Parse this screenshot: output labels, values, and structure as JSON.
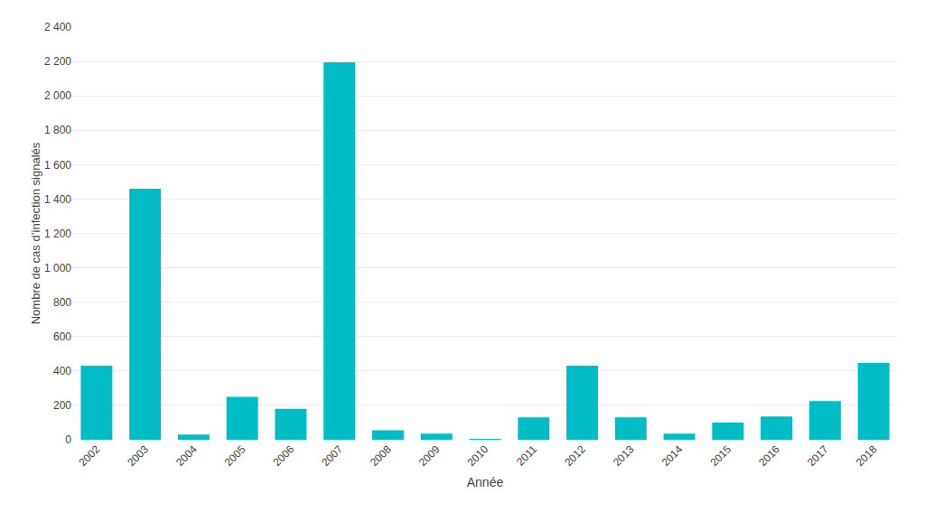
{
  "chart_data": {
    "type": "bar",
    "categories": [
      "2002",
      "2003",
      "2004",
      "2005",
      "2006",
      "2007",
      "2008",
      "2009",
      "2010",
      "2011",
      "2012",
      "2013",
      "2014",
      "2015",
      "2016",
      "2017",
      "2018"
    ],
    "values": [
      430,
      1460,
      30,
      250,
      180,
      2195,
      55,
      35,
      5,
      130,
      430,
      130,
      35,
      100,
      135,
      225,
      447
    ],
    "color": "#00BCC4",
    "xlabel": "Année",
    "ylabel": "Nombre de cas d’infection signalés",
    "ylim": [
      0,
      2400
    ],
    "yticks": [
      0,
      200,
      400,
      600,
      800,
      {
        "value": 1000,
        "label": "1 000"
      },
      {
        "value": 1200,
        "label": "1 200"
      },
      {
        "value": 1400,
        "label": "1 400"
      },
      {
        "value": 1600,
        "label": "1 600"
      },
      {
        "value": 1800,
        "label": "1 800"
      },
      {
        "value": 2000,
        "label": "2 000"
      },
      {
        "value": 2200,
        "label": "2 200"
      },
      {
        "value": 2400,
        "label": "2 400"
      }
    ],
    "grid": true
  }
}
